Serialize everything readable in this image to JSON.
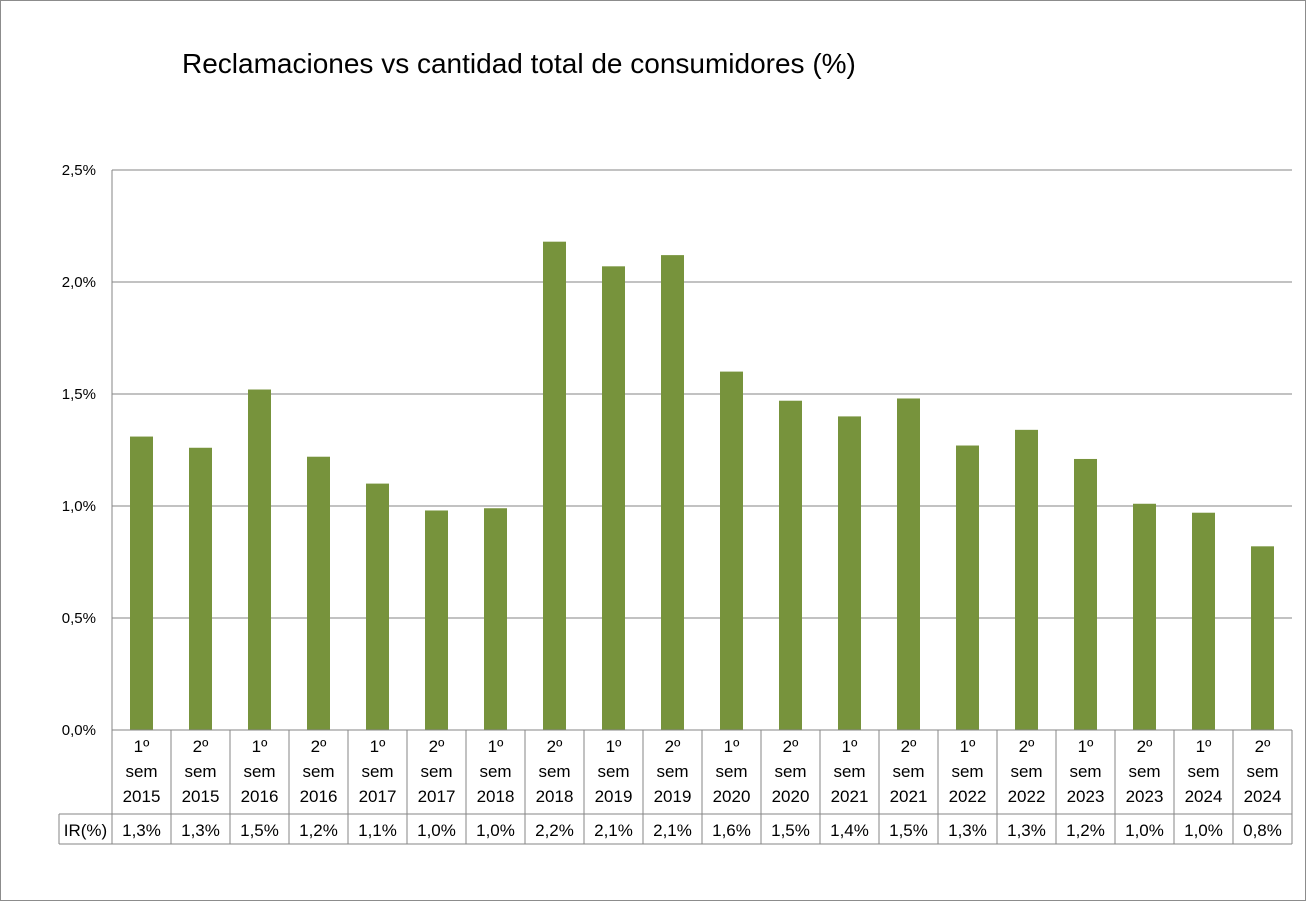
{
  "chart_data": {
    "type": "bar",
    "title": "Reclamaciones vs cantidad total de consumidores (%)",
    "xlabel": "",
    "ylabel": "",
    "ylim": [
      0,
      2.5
    ],
    "yticks": [
      "0,0%",
      "0,5%",
      "1,0%",
      "1,5%",
      "2,0%",
      "2,5%"
    ],
    "grid": true,
    "categories": [
      [
        "1º",
        "sem",
        "2015"
      ],
      [
        "2º",
        "sem",
        "2015"
      ],
      [
        "1º",
        "sem",
        "2016"
      ],
      [
        "2º",
        "sem",
        "2016"
      ],
      [
        "1º",
        "sem",
        "2017"
      ],
      [
        "2º",
        "sem",
        "2017"
      ],
      [
        "1º",
        "sem",
        "2018"
      ],
      [
        "2º",
        "sem",
        "2018"
      ],
      [
        "1º",
        "sem",
        "2019"
      ],
      [
        "2º",
        "sem",
        "2019"
      ],
      [
        "1º",
        "sem",
        "2020"
      ],
      [
        "2º",
        "sem",
        "2020"
      ],
      [
        "1º",
        "sem",
        "2021"
      ],
      [
        "2º",
        "sem",
        "2021"
      ],
      [
        "1º",
        "sem",
        "2022"
      ],
      [
        "2º",
        "sem",
        "2022"
      ],
      [
        "1º",
        "sem",
        "2023"
      ],
      [
        "2º",
        "sem",
        "2023"
      ],
      [
        "1º",
        "sem",
        "2024"
      ],
      [
        "2º",
        "sem",
        "2024"
      ]
    ],
    "values": [
      1.31,
      1.26,
      1.52,
      1.22,
      1.1,
      0.98,
      0.99,
      2.18,
      2.07,
      2.12,
      1.6,
      1.47,
      1.4,
      1.48,
      1.27,
      1.34,
      1.21,
      1.01,
      0.97,
      0.82
    ],
    "bar_color": "#77933c",
    "data_table": {
      "row_label": "IR(%)",
      "values": [
        "1,3%",
        "1,3%",
        "1,5%",
        "1,2%",
        "1,1%",
        "1,0%",
        "1,0%",
        "2,2%",
        "2,1%",
        "2,1%",
        "1,6%",
        "1,5%",
        "1,4%",
        "1,5%",
        "1,3%",
        "1,3%",
        "1,2%",
        "1,0%",
        "1,0%",
        "0,8%"
      ]
    }
  }
}
